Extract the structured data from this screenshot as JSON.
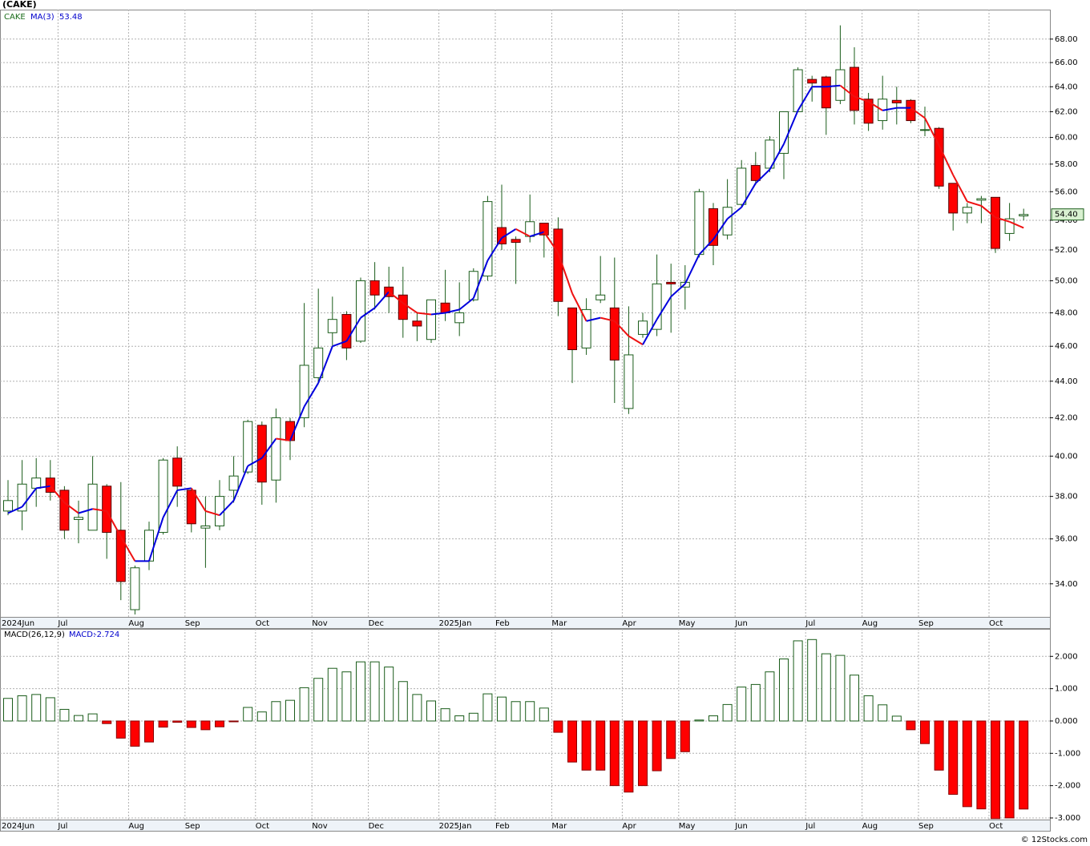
{
  "chart_data": [
    {
      "type": "candlestick",
      "title": "(CAKE)",
      "log_scale": true,
      "grid": true,
      "categories": [
        "2024Jun",
        null,
        null,
        null,
        "Jul",
        null,
        null,
        null,
        null,
        "Aug",
        null,
        null,
        null,
        "Sep",
        null,
        null,
        null,
        null,
        "Oct",
        null,
        null,
        null,
        "Nov",
        null,
        null,
        null,
        "Dec",
        null,
        null,
        null,
        null,
        "2025Jan",
        null,
        null,
        null,
        "Feb",
        null,
        null,
        null,
        "Mar",
        null,
        null,
        null,
        null,
        "Apr",
        null,
        null,
        null,
        "May",
        null,
        null,
        null,
        "Jun",
        null,
        null,
        null,
        null,
        "Jul",
        null,
        null,
        null,
        "Aug",
        null,
        null,
        null,
        "Sep",
        null,
        null,
        null,
        null,
        "Oct",
        null,
        null
      ],
      "series": [
        {
          "name": "CAKE",
          "up_color": "#ffffff",
          "down_color": "#ff0000",
          "edge_color": "#1a5c1a",
          "last_label": "54.40",
          "open": [
            37.3,
            37.3,
            38.4,
            38.9,
            38.3,
            36.9,
            36.4,
            38.5,
            36.4,
            32.9,
            35.0,
            36.3,
            39.9,
            38.3,
            36.5,
            36.6,
            38.3,
            39.2,
            41.6,
            38.8,
            41.8,
            42.0,
            44.2,
            46.8,
            47.9,
            46.3,
            50.0,
            49.6,
            49.1,
            47.5,
            46.4,
            48.6,
            47.4,
            48.8,
            50.3,
            53.5,
            52.7,
            52.9,
            53.8,
            53.4,
            48.3,
            45.9,
            48.8,
            48.3,
            42.5,
            46.7,
            47.0,
            49.9,
            49.6,
            51.7,
            54.8,
            53.0,
            55.1,
            57.9,
            57.7,
            58.8,
            62.0,
            64.6,
            64.8,
            62.9,
            65.6,
            63.0,
            61.3,
            62.9,
            62.9,
            60.6,
            60.7,
            56.6,
            54.5,
            55.4,
            55.6,
            53.1,
            54.3
          ],
          "high": [
            38.8,
            39.8,
            39.9,
            39.8,
            38.5,
            37.8,
            40.0,
            38.6,
            38.7,
            34.8,
            36.8,
            39.9,
            40.5,
            38.4,
            38.0,
            38.8,
            40.0,
            41.9,
            41.8,
            42.5,
            42.0,
            48.6,
            49.5,
            49.0,
            48.1,
            50.2,
            51.2,
            50.9,
            50.9,
            48.0,
            48.8,
            50.7,
            49.9,
            50.8,
            55.7,
            56.5,
            52.9,
            55.8,
            53.8,
            54.2,
            48.3,
            48.9,
            51.6,
            51.5,
            48.4,
            48.0,
            51.7,
            51.1,
            51.0,
            56.2,
            55.2,
            56.9,
            58.3,
            58.9,
            60.1,
            62.0,
            65.6,
            64.9,
            64.9,
            69.2,
            67.3,
            63.5,
            64.9,
            64.0,
            63.0,
            62.4,
            60.8,
            56.6,
            55.2,
            55.7,
            55.6,
            55.2,
            54.8
          ],
          "low": [
            37.1,
            36.4,
            37.5,
            37.8,
            36.0,
            35.8,
            36.4,
            35.1,
            33.3,
            32.7,
            34.6,
            36.2,
            37.5,
            36.3,
            34.7,
            36.4,
            37.7,
            39.1,
            37.6,
            37.7,
            39.8,
            41.5,
            43.9,
            46.0,
            45.2,
            46.2,
            48.2,
            48.0,
            46.5,
            46.3,
            46.2,
            47.5,
            46.6,
            48.7,
            50.0,
            52.0,
            49.8,
            52.5,
            51.5,
            47.8,
            43.9,
            45.5,
            48.6,
            42.8,
            42.2,
            46.5,
            46.6,
            46.8,
            48.2,
            51.5,
            51.0,
            52.7,
            54.9,
            56.5,
            57.4,
            56.9,
            62.0,
            62.8,
            60.2,
            62.6,
            61.0,
            60.5,
            60.6,
            61.0,
            61.1,
            60.1,
            56.2,
            53.3,
            53.8,
            53.8,
            51.8,
            52.6,
            54.0
          ],
          "close": [
            37.8,
            38.6,
            38.9,
            38.2,
            36.4,
            37.0,
            38.6,
            36.3,
            34.1,
            34.7,
            36.4,
            39.8,
            38.5,
            36.7,
            36.6,
            38.0,
            39.0,
            41.8,
            38.7,
            42.0,
            40.8,
            44.9,
            45.9,
            47.6,
            45.9,
            50.0,
            49.1,
            49.0,
            47.6,
            47.2,
            48.8,
            48.0,
            48.0,
            50.6,
            55.3,
            52.4,
            52.5,
            53.9,
            53.0,
            48.7,
            45.8,
            48.2,
            49.1,
            45.2,
            45.5,
            47.5,
            49.8,
            49.8,
            49.9,
            56.0,
            52.3,
            54.9,
            57.7,
            56.8,
            59.8,
            62.0,
            65.4,
            64.3,
            62.3,
            65.4,
            62.1,
            61.1,
            63.0,
            62.7,
            61.3,
            60.6,
            56.4,
            54.5,
            54.9,
            55.5,
            52.1,
            54.1,
            54.4
          ]
        },
        {
          "name": "MA(3)",
          "up_color": "#0000dd",
          "down_color": "#ee1111",
          "values": [
            37.2,
            37.5,
            38.4,
            38.5,
            37.7,
            37.2,
            37.4,
            37.3,
            36.1,
            35.0,
            35.0,
            37.0,
            38.3,
            38.4,
            37.3,
            37.1,
            37.8,
            39.5,
            39.9,
            40.9,
            40.8,
            42.6,
            43.9,
            46.0,
            46.3,
            47.7,
            48.3,
            49.3,
            48.6,
            48.0,
            47.9,
            48.0,
            48.2,
            48.9,
            51.3,
            52.8,
            53.4,
            52.9,
            53.2,
            51.8,
            49.2,
            47.5,
            47.7,
            47.5,
            46.6,
            46.1,
            47.6,
            49.0,
            49.8,
            51.7,
            52.7,
            54.1,
            54.9,
            56.6,
            57.6,
            59.5,
            62.1,
            64.0,
            64.0,
            64.1,
            63.2,
            62.8,
            62.1,
            62.3,
            62.3,
            61.5,
            59.4,
            57.2,
            55.3,
            55.0,
            54.2,
            53.9,
            53.48
          ]
        }
      ],
      "ylim": [
        32.6,
        70.6
      ],
      "yticks": [
        {
          "value": 34,
          "label": "34.00"
        },
        {
          "value": 36,
          "label": "36.00"
        },
        {
          "value": 38,
          "label": "38.00"
        },
        {
          "value": 40,
          "label": "40.00"
        },
        {
          "value": 42,
          "label": "42.00"
        },
        {
          "value": 44,
          "label": "44.00"
        },
        {
          "value": 46,
          "label": "46.00"
        },
        {
          "value": 48,
          "label": "48.00"
        },
        {
          "value": 50,
          "label": "50.00"
        },
        {
          "value": 52,
          "label": "52.00"
        },
        {
          "value": 54,
          "label": "54.00"
        },
        {
          "value": 56,
          "label": "56.00"
        },
        {
          "value": 58,
          "label": "58.00"
        },
        {
          "value": 60,
          "label": "60.00"
        },
        {
          "value": 62,
          "label": "62.00"
        },
        {
          "value": 64,
          "label": "64.00"
        },
        {
          "value": 66,
          "label": "66.00"
        },
        {
          "value": 68,
          "label": "68.00"
        }
      ]
    },
    {
      "type": "bar",
      "title": "MACD(26,12,9)",
      "grid": true,
      "categories": [
        "2024Jun",
        null,
        null,
        null,
        "Jul",
        null,
        null,
        null,
        null,
        "Aug",
        null,
        null,
        null,
        "Sep",
        null,
        null,
        null,
        null,
        "Oct",
        null,
        null,
        null,
        "Nov",
        null,
        null,
        null,
        "Dec",
        null,
        null,
        null,
        null,
        "2025Jan",
        null,
        null,
        null,
        "Feb",
        null,
        null,
        null,
        "Mar",
        null,
        null,
        null,
        null,
        "Apr",
        null,
        null,
        null,
        "May",
        null,
        null,
        null,
        "Jun",
        null,
        null,
        null,
        null,
        "Jul",
        null,
        null,
        null,
        "Aug",
        null,
        null,
        null,
        "Sep",
        null,
        null,
        null,
        null,
        "Oct",
        null,
        null
      ],
      "series": [
        {
          "name": "MACD:",
          "up_color": "#1a5c1a",
          "down_color": "#ff0000",
          "values": [
            0.7,
            0.78,
            0.82,
            0.72,
            0.36,
            0.17,
            0.22,
            -0.08,
            -0.53,
            -0.78,
            -0.65,
            -0.19,
            -0.04,
            -0.2,
            -0.27,
            -0.18,
            -0.02,
            0.42,
            0.28,
            0.6,
            0.64,
            1.03,
            1.32,
            1.63,
            1.52,
            1.83,
            1.83,
            1.67,
            1.22,
            0.82,
            0.62,
            0.38,
            0.16,
            0.24,
            0.84,
            0.74,
            0.6,
            0.6,
            0.4,
            -0.35,
            -1.27,
            -1.52,
            -1.52,
            -2.0,
            -2.2,
            -2.0,
            -1.54,
            -1.16,
            -0.95,
            0.03,
            0.16,
            0.51,
            1.05,
            1.13,
            1.52,
            1.92,
            2.48,
            2.52,
            2.08,
            2.03,
            1.42,
            0.78,
            0.5,
            0.15,
            -0.27,
            -0.7,
            -1.52,
            -2.27,
            -2.65,
            -2.72,
            -3.02,
            -3.0,
            -2.724
          ]
        }
      ],
      "ylim": [
        -3.05,
        2.85
      ],
      "yticks": [
        {
          "value": -3,
          "label": "-3.000"
        },
        {
          "value": -2,
          "label": "-2.000"
        },
        {
          "value": -1,
          "label": "-1.000"
        },
        {
          "value": 0,
          "label": "0.000"
        },
        {
          "value": 1,
          "label": "1.000"
        },
        {
          "value": 2,
          "label": "2.000"
        }
      ]
    }
  ],
  "footer": "© 12Stocks.com"
}
